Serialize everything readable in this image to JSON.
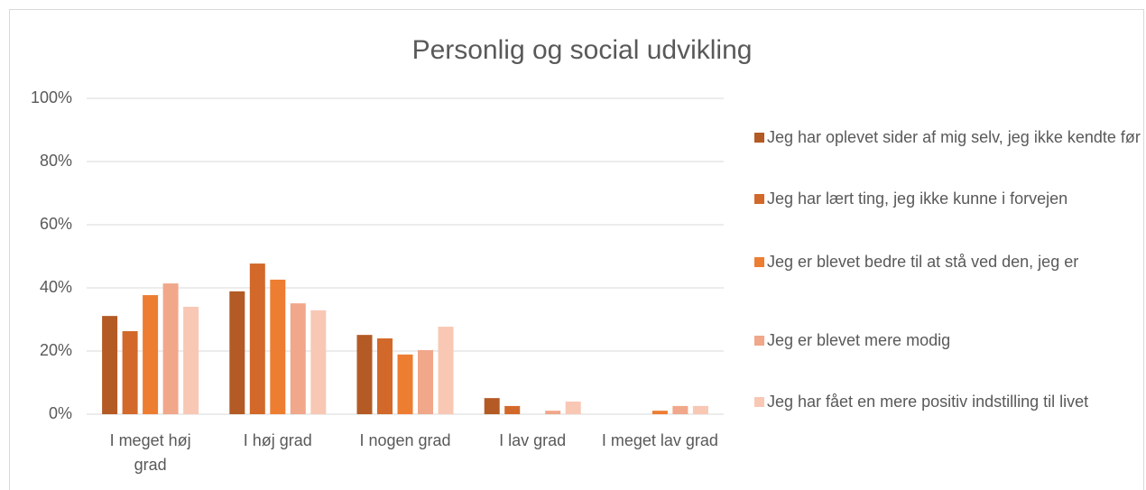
{
  "chart_data": {
    "type": "bar",
    "title": "Personlig og social udvikling",
    "categories": [
      "I meget høj grad",
      "I høj grad",
      "I nogen grad",
      "I lav grad",
      "I meget lav grad"
    ],
    "series": [
      {
        "name": "Jeg har oplevet sider af mig selv, jeg ikke kendte før",
        "color": "#b35a25",
        "values": [
          31.1,
          38.9,
          25.1,
          5.1,
          0
        ]
      },
      {
        "name": "Jeg har lært ting, jeg ikke kunne i forvejen",
        "color": "#d2692a",
        "values": [
          26.3,
          47.7,
          24,
          2.6,
          0
        ]
      },
      {
        "name": "Jeg er blevet bedre til at stå ved den, jeg er",
        "color": "#ed7d31",
        "values": [
          37.7,
          42.6,
          18.9,
          0,
          1.1
        ]
      },
      {
        "name": "Jeg er blevet mere modig",
        "color": "#f1a78a",
        "values": [
          41.4,
          35.1,
          20.3,
          1.1,
          2.6
        ]
      },
      {
        "name": "Jeg har fået en mere positiv indstilling til livet",
        "color": "#f8c8b4",
        "values": [
          34,
          32.9,
          27.7,
          4,
          2.6
        ]
      }
    ],
    "ylim": [
      0,
      100
    ],
    "yticks": [
      {
        "value": 0,
        "label": "0%"
      },
      {
        "value": 20,
        "label": "20%"
      },
      {
        "value": 40,
        "label": "40%"
      },
      {
        "value": 60,
        "label": "60%"
      },
      {
        "value": 80,
        "label": "80%"
      },
      {
        "value": 100,
        "label": "100%"
      }
    ],
    "grid": true,
    "legend": "right"
  }
}
